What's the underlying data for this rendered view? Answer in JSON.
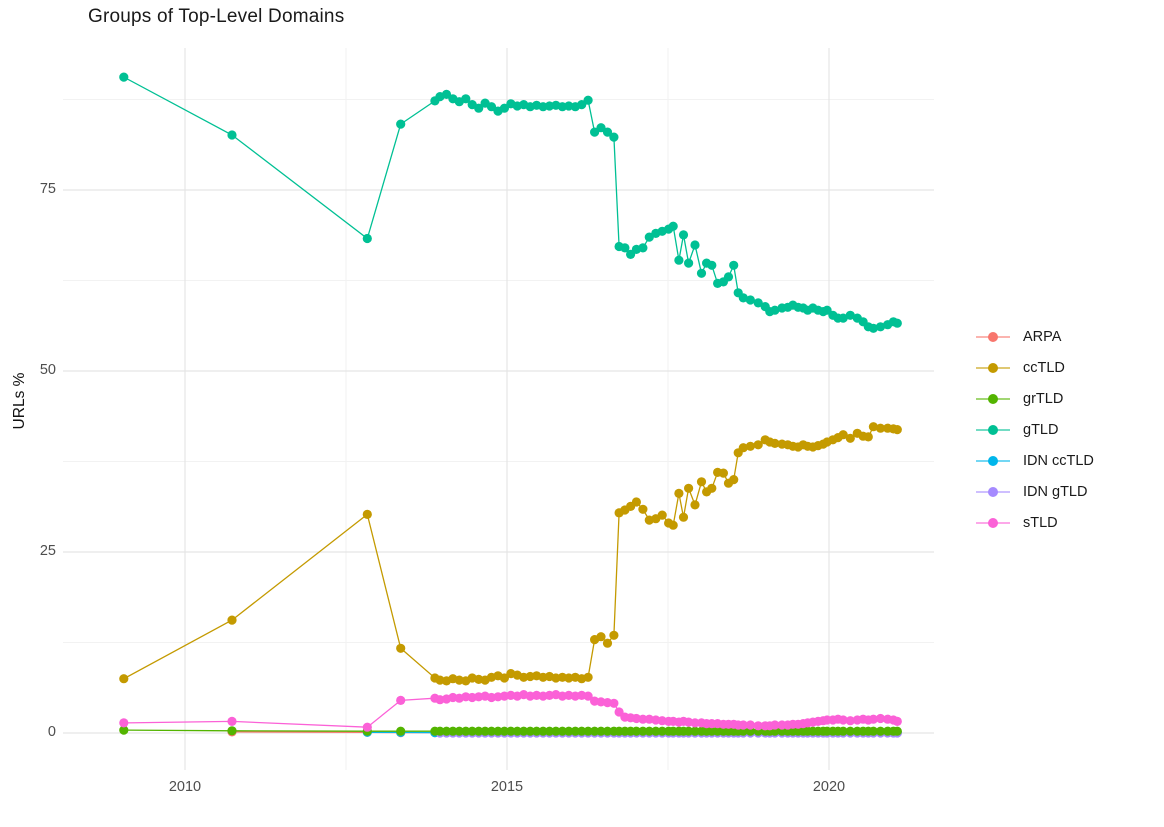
{
  "title": "Groups of Top-Level Domains",
  "chart_data": {
    "type": "line",
    "title": "Groups of Top-Level Domains",
    "xlabel": "",
    "ylabel": "URLs %",
    "legend_position": "right",
    "grid": true,
    "background": "#ffffff",
    "grid_major_color": "#e5e5e5",
    "grid_minor_color": "#f2f2f2",
    "x_axis": {
      "ticks": [
        2010,
        2015,
        2020
      ],
      "tick_labels": [
        "2010",
        "2015",
        "2020"
      ],
      "minor": [
        2012.5,
        2017.5
      ],
      "range": [
        2008.1,
        2021.8
      ]
    },
    "y_axis": {
      "ticks": [
        0,
        25,
        50,
        75
      ],
      "tick_labels": [
        "0",
        "25",
        "50",
        "75"
      ],
      "minor": [
        12.5,
        37.5,
        62.5,
        87.5
      ],
      "range": [
        -5,
        95
      ]
    },
    "x": [
      2009.05,
      2010.73,
      2012.83,
      2013.35,
      2013.88,
      2013.96,
      2014.06,
      2014.16,
      2014.26,
      2014.36,
      2014.46,
      2014.56,
      2014.66,
      2014.76,
      2014.86,
      2014.96,
      2015.06,
      2015.16,
      2015.26,
      2015.36,
      2015.46,
      2015.56,
      2015.66,
      2015.76,
      2015.86,
      2015.96,
      2016.06,
      2016.16,
      2016.26,
      2016.36,
      2016.46,
      2016.56,
      2016.66,
      2016.74,
      2016.83,
      2016.92,
      2017.01,
      2017.11,
      2017.21,
      2017.31,
      2017.41,
      2017.51,
      2017.58,
      2017.67,
      2017.74,
      2017.82,
      2017.92,
      2018.02,
      2018.1,
      2018.18,
      2018.27,
      2018.36,
      2018.44,
      2018.52,
      2018.59,
      2018.67,
      2018.78,
      2018.9,
      2019.01,
      2019.08,
      2019.16,
      2019.27,
      2019.36,
      2019.44,
      2019.52,
      2019.6,
      2019.67,
      2019.75,
      2019.83,
      2019.91,
      2019.97,
      2020.06,
      2020.14,
      2020.22,
      2020.33,
      2020.44,
      2020.53,
      2020.61,
      2020.69,
      2020.8,
      2020.91,
      2021.0,
      2021.06
    ],
    "series": [
      {
        "name": "ARPA",
        "color": "#F8766D",
        "y": [
          null,
          0.15,
          0.1,
          0.05,
          0.05,
          0.05,
          0.05,
          0.05,
          0.05,
          0.05,
          0.05,
          0.05,
          0.05,
          0.05,
          0.05,
          0.05,
          0.05,
          0.05,
          0.05,
          0.05,
          0.05,
          0.05,
          0.05,
          0.05,
          0.05,
          0.05,
          0.05,
          0.05,
          0.05,
          0.05,
          0.05,
          0.05,
          0.05,
          0.05,
          0.05,
          0.05,
          0.05,
          0.05,
          0.05,
          0.05,
          0.05,
          0.05,
          0.05,
          0.05,
          0.05,
          0.05,
          0.05,
          0.05,
          0.05,
          0.05,
          0.05,
          0.05,
          0.05,
          0.05,
          0.05,
          0.05,
          0.05,
          0.05,
          0.05,
          0.05,
          0.05,
          0.05,
          0.05,
          0.05,
          0.05,
          0.05,
          0.05,
          0.05,
          0.05,
          0.05,
          0.05,
          0.05,
          0.05,
          0.05,
          0.05,
          0.05,
          0.05,
          0.05,
          0.05,
          0.05,
          0.05,
          0.05,
          0.05
        ]
      },
      {
        "name": "ccTLD",
        "color": "#C49A00",
        "y": [
          7.5,
          15.6,
          30.2,
          11.7,
          7.6,
          7.3,
          7.2,
          7.5,
          7.3,
          7.2,
          7.6,
          7.4,
          7.3,
          7.7,
          7.9,
          7.6,
          8.2,
          8.0,
          7.7,
          7.8,
          7.9,
          7.7,
          7.8,
          7.6,
          7.7,
          7.6,
          7.7,
          7.5,
          7.7,
          12.9,
          13.3,
          12.4,
          13.5,
          30.4,
          30.8,
          31.3,
          31.9,
          30.9,
          29.4,
          29.6,
          30.1,
          29.0,
          28.7,
          33.1,
          29.8,
          33.8,
          31.5,
          34.7,
          33.3,
          33.8,
          36.0,
          35.9,
          34.5,
          35.0,
          38.7,
          39.4,
          39.6,
          39.8,
          40.5,
          40.2,
          40.0,
          39.9,
          39.8,
          39.6,
          39.5,
          39.8,
          39.6,
          39.5,
          39.7,
          39.9,
          40.2,
          40.5,
          40.8,
          41.2,
          40.7,
          41.4,
          41.0,
          40.9,
          42.3,
          42.1,
          42.1,
          42.0,
          41.9
        ]
      },
      {
        "name": "grTLD",
        "color": "#53B400",
        "y": [
          0.4,
          0.3,
          0.25,
          0.25,
          0.25,
          0.25,
          0.25,
          0.25,
          0.25,
          0.25,
          0.25,
          0.25,
          0.25,
          0.25,
          0.25,
          0.25,
          0.25,
          0.25,
          0.25,
          0.25,
          0.25,
          0.25,
          0.25,
          0.25,
          0.25,
          0.25,
          0.25,
          0.25,
          0.25,
          0.25,
          0.25,
          0.25,
          0.25,
          0.25,
          0.25,
          0.25,
          0.25,
          0.25,
          0.25,
          0.25,
          0.25,
          0.25,
          0.25,
          0.25,
          0.25,
          0.25,
          0.25,
          0.25,
          0.25,
          0.25,
          0.25,
          0.25,
          0.25,
          0.25,
          0.25,
          0.25,
          0.25,
          0.25,
          0.25,
          0.25,
          0.25,
          0.25,
          0.25,
          0.25,
          0.25,
          0.25,
          0.25,
          0.25,
          0.25,
          0.25,
          0.25,
          0.25,
          0.25,
          0.25,
          0.25,
          0.25,
          0.25,
          0.25,
          0.25,
          0.25,
          0.25,
          0.25,
          0.25
        ]
      },
      {
        "name": "gTLD",
        "color": "#00C094",
        "y": [
          90.6,
          82.6,
          68.3,
          84.1,
          87.3,
          87.9,
          88.2,
          87.6,
          87.2,
          87.6,
          86.8,
          86.3,
          87.0,
          86.5,
          85.9,
          86.3,
          86.9,
          86.6,
          86.8,
          86.5,
          86.7,
          86.5,
          86.6,
          86.7,
          86.5,
          86.6,
          86.5,
          86.8,
          87.4,
          83.0,
          83.6,
          83.0,
          82.3,
          67.2,
          67.0,
          66.1,
          66.8,
          67.0,
          68.5,
          69.0,
          69.3,
          69.6,
          70.0,
          65.3,
          68.8,
          64.9,
          67.4,
          63.5,
          64.9,
          64.6,
          62.1,
          62.3,
          63.0,
          64.6,
          60.8,
          60.1,
          59.8,
          59.4,
          58.9,
          58.2,
          58.4,
          58.7,
          58.8,
          59.1,
          58.8,
          58.7,
          58.4,
          58.7,
          58.4,
          58.2,
          58.4,
          57.7,
          57.3,
          57.3,
          57.7,
          57.3,
          56.8,
          56.1,
          55.9,
          56.1,
          56.4,
          56.8,
          56.6
        ]
      },
      {
        "name": "IDN ccTLD",
        "color": "#00B6EB",
        "y": [
          null,
          null,
          0.1,
          0.08,
          0.05,
          0.05,
          0.05,
          0.05,
          0.05,
          0.05,
          0.05,
          0.05,
          0.05,
          0.05,
          0.05,
          0.05,
          0.05,
          0.05,
          0.05,
          0.05,
          0.05,
          0.05,
          0.05,
          0.05,
          0.05,
          0.05,
          0.05,
          0.05,
          0.05,
          0.05,
          0.05,
          0.05,
          0.05,
          0.05,
          0.05,
          0.05,
          0.05,
          0.05,
          0.05,
          0.05,
          0.05,
          0.05,
          0.05,
          0.05,
          0.05,
          0.05,
          0.05,
          0.05,
          0.05,
          0.05,
          0.05,
          0.05,
          0.05,
          0.05,
          0.05,
          0.05,
          0.05,
          0.05,
          0.05,
          0.05,
          0.05,
          0.05,
          0.05,
          0.05,
          0.05,
          0.05,
          0.05,
          0.05,
          0.05,
          0.05,
          0.05,
          0.05,
          0.05,
          0.05,
          0.05,
          0.05,
          0.05,
          0.05,
          0.05,
          0.05,
          0.05,
          0.05,
          0.05
        ]
      },
      {
        "name": "IDN gTLD",
        "color": "#A58AFF",
        "y": [
          null,
          null,
          null,
          null,
          null,
          0.0,
          0.0,
          0.0,
          0.0,
          0.0,
          0.0,
          0.0,
          0.0,
          0.0,
          0.0,
          0.0,
          0.0,
          0.0,
          0.0,
          0.0,
          0.0,
          0.0,
          0.0,
          0.0,
          0.0,
          0.0,
          0.0,
          0.0,
          0.0,
          0.0,
          0.0,
          0.0,
          0.0,
          0.0,
          0.0,
          0.0,
          0.0,
          0.0,
          0.0,
          0.0,
          0.0,
          0.0,
          0.0,
          0.0,
          0.0,
          0.0,
          0.0,
          0.0,
          0.0,
          0.0,
          0.0,
          0.0,
          0.0,
          0.0,
          0.0,
          0.0,
          0.0,
          0.0,
          0.0,
          0.0,
          0.0,
          0.0,
          0.0,
          0.0,
          0.0,
          0.0,
          0.0,
          0.0,
          0.0,
          0.0,
          0.0,
          0.0,
          0.0,
          0.0,
          0.0,
          0.0,
          0.0,
          0.0,
          0.0,
          0.0,
          0.0,
          0.0,
          0.0
        ]
      },
      {
        "name": "sTLD",
        "color": "#FB61D7",
        "y": [
          1.4,
          1.6,
          0.8,
          4.5,
          4.8,
          4.6,
          4.7,
          4.9,
          4.8,
          5.0,
          4.9,
          5.0,
          5.1,
          4.9,
          5.0,
          5.1,
          5.2,
          5.1,
          5.3,
          5.1,
          5.2,
          5.1,
          5.2,
          5.3,
          5.1,
          5.2,
          5.1,
          5.2,
          5.1,
          4.4,
          4.3,
          4.2,
          4.1,
          2.9,
          2.2,
          2.1,
          2.0,
          1.9,
          1.9,
          1.8,
          1.7,
          1.6,
          1.6,
          1.5,
          1.6,
          1.5,
          1.4,
          1.4,
          1.3,
          1.3,
          1.3,
          1.2,
          1.2,
          1.2,
          1.1,
          1.1,
          1.1,
          1.0,
          1.0,
          1.0,
          1.1,
          1.1,
          1.1,
          1.2,
          1.2,
          1.3,
          1.4,
          1.5,
          1.6,
          1.7,
          1.8,
          1.8,
          1.9,
          1.8,
          1.7,
          1.8,
          1.9,
          1.8,
          1.9,
          2.0,
          1.9,
          1.8,
          1.6
        ]
      }
    ]
  }
}
